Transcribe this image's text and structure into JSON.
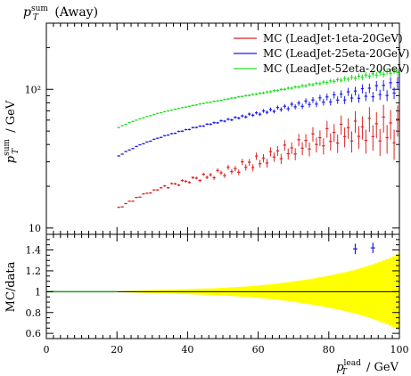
{
  "chart_data": [
    {
      "type": "scatter",
      "title": "p_T^sum (Away)",
      "ylabel": "p_T^sum / GeV",
      "yscale": "log",
      "xlim": [
        0,
        100
      ],
      "ylim": [
        9,
        300
      ],
      "y_ticks": [
        "10",
        "10²"
      ],
      "legend_position": "top-right",
      "grid": false,
      "series": [
        {
          "name": "MC (LeadJet-1eta-20GeV)",
          "color": "#dd2222",
          "x": [
            20,
            21,
            22,
            23,
            24,
            25,
            26,
            27,
            28,
            29,
            30,
            31,
            32,
            33,
            34,
            35,
            36,
            37,
            38,
            39,
            40,
            41,
            42,
            43,
            44,
            45,
            46,
            47,
            48,
            49,
            50,
            51,
            52,
            53,
            54,
            55,
            56,
            57,
            58,
            59,
            60,
            61,
            62,
            63,
            64,
            65,
            66,
            67,
            68,
            69,
            70,
            71,
            72,
            73,
            74,
            75,
            76,
            77,
            78,
            79,
            80,
            81,
            82,
            83,
            84,
            85,
            86,
            87,
            88,
            89,
            90,
            91,
            92,
            93,
            94,
            95,
            96,
            97,
            98,
            99
          ],
          "y": [
            13.8,
            14.4,
            14.9,
            15.4,
            15.9,
            16.4,
            16.8,
            17.3,
            17.7,
            18.1,
            18.5,
            18.9,
            19.3,
            19.6,
            19.9,
            20.3,
            20.6,
            20.9,
            21.3,
            21.6,
            21.9,
            22.3,
            22.6,
            22.9,
            23.2,
            23.5,
            23.8,
            24.1,
            24.4,
            24.8,
            25.2,
            25.6,
            26.0,
            26.5,
            27.0,
            27.5,
            28.1,
            28.7,
            29.3,
            30.0,
            30.6,
            31.3,
            32.0,
            32.7,
            33.4,
            34.1,
            34.8,
            35.5,
            36.3,
            37.1,
            37.9,
            38.7,
            39.5,
            40.3,
            41.1,
            41.9,
            42.7,
            43.5,
            44.3,
            45.1,
            45.8,
            46.5,
            47.2,
            47.9,
            48.5,
            49.0,
            49.5,
            50.0,
            50.4,
            50.8,
            51.1,
            51.4,
            51.6,
            51.8,
            51.9,
            52.0,
            52.0,
            52.0,
            51.9,
            51.8
          ],
          "scatter": [
            0.3,
            -0.2,
            0.1,
            0.2,
            -0.3,
            0.2,
            -0.1,
            0.3,
            0.1,
            -0.2,
            0.3,
            -0.1,
            0.2,
            0.5,
            -0.4,
            0.6,
            0.2,
            -0.5,
            0.7,
            0.1,
            -0.6,
            0.8,
            0.3,
            -0.9,
            1.2,
            -0.3,
            0.4,
            -1.1,
            1.6,
            0.2,
            -1.3,
            1.8,
            -0.5,
            0.3,
            -1.8,
            2.5,
            -0.7,
            1.1,
            -2.1,
            3.0,
            -1.5,
            0.6,
            -2.6,
            2.8,
            -0.9,
            1.9,
            -3.2,
            4.1,
            -2.0,
            0.7,
            -3.7,
            4.6,
            -1.9,
            2.5,
            -4.0,
            5.8,
            -2.7,
            1.3,
            -5.2,
            6.9,
            -3.6,
            2.4,
            -6.2,
            8.1,
            -2.9,
            3.9,
            -7.1,
            9.0,
            -4.6,
            2.8,
            -8.3,
            10.4,
            -6.0,
            4.7,
            -9.5,
            11.1,
            -7.2,
            5.3,
            -10.8,
            9.2
          ]
        },
        {
          "name": "MC (LeadJet-25eta-20GeV)",
          "color": "#1a1aee",
          "x": [
            20,
            21,
            22,
            23,
            24,
            25,
            26,
            27,
            28,
            29,
            30,
            31,
            32,
            33,
            34,
            35,
            36,
            37,
            38,
            39,
            40,
            41,
            42,
            43,
            44,
            45,
            46,
            47,
            48,
            49,
            50,
            51,
            52,
            53,
            54,
            55,
            56,
            57,
            58,
            59,
            60,
            61,
            62,
            63,
            64,
            65,
            66,
            67,
            68,
            69,
            70,
            71,
            72,
            73,
            74,
            75,
            76,
            77,
            78,
            79,
            80,
            81,
            82,
            83,
            84,
            85,
            86,
            87,
            88,
            89,
            90,
            91,
            92,
            93,
            94,
            95,
            96,
            97,
            98,
            99
          ],
          "y": [
            33.0,
            34.2,
            35.4,
            36.5,
            37.6,
            38.6,
            39.6,
            40.6,
            41.6,
            42.5,
            43.4,
            44.3,
            45.2,
            46.0,
            46.9,
            47.7,
            48.5,
            49.3,
            50.1,
            50.9,
            51.7,
            52.5,
            53.2,
            54.0,
            54.8,
            55.5,
            56.3,
            57.1,
            57.9,
            58.6,
            59.4,
            60.2,
            61.0,
            61.8,
            62.6,
            63.4,
            64.2,
            65.0,
            65.8,
            66.6,
            67.4,
            68.3,
            69.2,
            70.1,
            71.0,
            71.9,
            72.8,
            73.7,
            74.6,
            75.5,
            76.4,
            77.3,
            78.2,
            79.1,
            80.0,
            80.9,
            81.8,
            82.7,
            83.6,
            84.5,
            85.4,
            86.3,
            87.2,
            88.1,
            89.0,
            89.9,
            90.8,
            91.7,
            92.6,
            93.5,
            94.4,
            95.3,
            96.2,
            97.1,
            98.0,
            98.9,
            99.8,
            100.7,
            101.6,
            102.5
          ],
          "scatter": [
            0.1,
            -0.1,
            0.2,
            0.0,
            -0.2,
            0.1,
            0.2,
            -0.1,
            0.1,
            -0.2,
            0.2,
            0.1,
            -0.2,
            0.3,
            -0.1,
            0.2,
            -0.3,
            0.4,
            -0.2,
            0.3,
            -0.4,
            0.5,
            -0.1,
            0.3,
            -0.5,
            0.6,
            -0.3,
            0.4,
            -0.6,
            0.8,
            -0.5,
            0.7,
            -0.8,
            1.0,
            -0.6,
            0.9,
            -1.0,
            1.3,
            -0.8,
            1.1,
            -1.3,
            1.6,
            -1.0,
            1.4,
            -1.7,
            2.0,
            -1.3,
            1.8,
            -2.2,
            2.6,
            -1.7,
            2.3,
            -2.8,
            3.2,
            -2.2,
            2.9,
            -3.5,
            4.1,
            -2.8,
            3.6,
            -4.3,
            5.0,
            -3.5,
            4.4,
            -5.2,
            6.1,
            -4.3,
            5.5,
            -6.4,
            7.5,
            -5.3,
            6.6,
            -7.8,
            9.0,
            -6.4,
            8.0,
            -9.4,
            10.8,
            -7.7,
            9.6
          ]
        },
        {
          "name": "MC (LeadJet-52eta-20GeV)",
          "color": "#22dd22",
          "x": [
            20,
            21,
            22,
            23,
            24,
            25,
            26,
            27,
            28,
            29,
            30,
            31,
            32,
            33,
            34,
            35,
            36,
            37,
            38,
            39,
            40,
            41,
            42,
            43,
            44,
            45,
            46,
            47,
            48,
            49,
            50,
            51,
            52,
            53,
            54,
            55,
            56,
            57,
            58,
            59,
            60,
            61,
            62,
            63,
            64,
            65,
            66,
            67,
            68,
            69,
            70,
            71,
            72,
            73,
            74,
            75,
            76,
            77,
            78,
            79,
            80,
            81,
            82,
            83,
            84,
            85,
            86,
            87,
            88,
            89,
            90,
            91,
            92,
            93,
            94,
            95,
            96,
            97,
            98,
            99
          ],
          "y": [
            53.0,
            54.6,
            56.0,
            57.4,
            58.7,
            60.0,
            61.2,
            62.4,
            63.6,
            64.7,
            65.8,
            66.9,
            67.9,
            68.9,
            69.9,
            70.9,
            71.8,
            72.8,
            73.7,
            74.6,
            75.5,
            76.4,
            77.3,
            78.2,
            79.1,
            80.0,
            80.9,
            81.8,
            82.6,
            83.5,
            84.4,
            85.3,
            86.2,
            87.1,
            88.0,
            88.9,
            89.8,
            90.7,
            91.6,
            92.5,
            93.4,
            94.4,
            95.4,
            96.4,
            97.4,
            98.4,
            99.4,
            100.4,
            101.4,
            102.4,
            103.4,
            104.4,
            105.4,
            106.4,
            107.4,
            108.4,
            109.5,
            110.6,
            111.7,
            112.8,
            113.9,
            115.0,
            116.1,
            117.2,
            118.3,
            119.4,
            120.5,
            121.6,
            122.7,
            123.8,
            124.9,
            126.0,
            127.1,
            128.2,
            129.3,
            130.4,
            131.5,
            132.6,
            133.7,
            134.8
          ],
          "scatter": [
            0,
            0.1,
            -0.1,
            0.1,
            0,
            -0.1,
            0.1,
            0,
            0.1,
            -0.1,
            0,
            0.1,
            -0.1,
            0.1,
            0,
            -0.1,
            0.1,
            0,
            0.1,
            -0.1,
            0,
            0.1,
            -0.1,
            0.2,
            -0.1,
            0.1,
            -0.2,
            0.2,
            0,
            -0.2,
            0.2,
            -0.1,
            0.2,
            -0.2,
            0.3,
            -0.1,
            0.2,
            -0.3,
            0.3,
            -0.2,
            0.3,
            -0.3,
            0.4,
            -0.2,
            0.4,
            -0.4,
            0.5,
            -0.3,
            0.5,
            -0.5,
            0.6,
            -0.4,
            0.7,
            -0.6,
            0.8,
            -0.5,
            0.9,
            -0.7,
            1.0,
            -0.8,
            1.1,
            -0.9,
            1.3,
            -1.0,
            1.4,
            -1.1,
            1.6,
            -1.3,
            1.8,
            -1.5,
            2.0,
            -1.6,
            2.2,
            -1.8,
            2.4,
            -2.0,
            2.6,
            -2.2,
            2.8,
            -2.4
          ]
        }
      ]
    },
    {
      "type": "area",
      "ylabel": "MC/data",
      "xlabel": "p_T^lead / GeV",
      "xlim": [
        0,
        100
      ],
      "ylim": [
        0.55,
        1.55
      ],
      "x_ticks": [
        "0",
        "20",
        "40",
        "60",
        "80",
        "100"
      ],
      "y_ticks": [
        "0.6",
        "0.8",
        "1",
        "1.2",
        "1.4"
      ],
      "reference_line": 1.0,
      "band_color": "#ffff00",
      "band_x": [
        20,
        21,
        22,
        23,
        24,
        25,
        26,
        27,
        28,
        29,
        30,
        31,
        32,
        33,
        34,
        35,
        36,
        37,
        38,
        39,
        40,
        41,
        42,
        43,
        44,
        45,
        46,
        47,
        48,
        49,
        50,
        51,
        52,
        53,
        54,
        55,
        56,
        57,
        58,
        59,
        60,
        61,
        62,
        63,
        64,
        65,
        66,
        67,
        68,
        69,
        70,
        71,
        72,
        73,
        74,
        75,
        76,
        77,
        78,
        79,
        80,
        81,
        82,
        83,
        84,
        85,
        86,
        87,
        88,
        89,
        90,
        91,
        92,
        93,
        94,
        95,
        96,
        97,
        98,
        99
      ],
      "band_halfwidth": [
        0.005,
        0.006,
        0.007,
        0.008,
        0.009,
        0.01,
        0.011,
        0.012,
        0.013,
        0.014,
        0.015,
        0.016,
        0.017,
        0.018,
        0.019,
        0.02,
        0.021,
        0.022,
        0.023,
        0.024,
        0.025,
        0.026,
        0.027,
        0.028,
        0.029,
        0.03,
        0.031,
        0.032,
        0.034,
        0.036,
        0.038,
        0.04,
        0.042,
        0.044,
        0.046,
        0.048,
        0.05,
        0.052,
        0.055,
        0.058,
        0.061,
        0.064,
        0.067,
        0.07,
        0.074,
        0.078,
        0.082,
        0.086,
        0.09,
        0.095,
        0.1,
        0.105,
        0.11,
        0.115,
        0.12,
        0.126,
        0.132,
        0.138,
        0.144,
        0.15,
        0.157,
        0.164,
        0.171,
        0.178,
        0.186,
        0.194,
        0.202,
        0.211,
        0.22,
        0.23,
        0.24,
        0.251,
        0.262,
        0.274,
        0.286,
        0.299,
        0.312,
        0.326,
        0.34,
        0.36
      ],
      "ratio_points": [
        {
          "series": "MC (LeadJet-25eta-20GeV)",
          "x": 87,
          "y": 1.41,
          "err": 0.05
        },
        {
          "series": "MC (LeadJet-25eta-20GeV)",
          "x": 92,
          "y": 1.42,
          "err": 0.05
        }
      ]
    }
  ]
}
